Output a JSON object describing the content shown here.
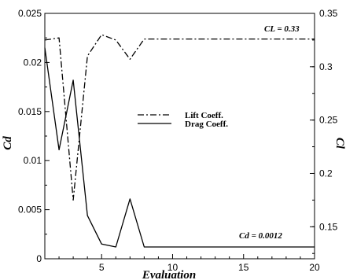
{
  "chart_data": {
    "type": "line",
    "xlabel": "Evaluation",
    "ylabel_left": "Cd",
    "ylabel_right": "Cl",
    "xlim": [
      1,
      20
    ],
    "ylim_left": [
      0,
      0.025
    ],
    "ylim_right": [
      0.12,
      0.35
    ],
    "xticks": [
      "5",
      "10",
      "15",
      "20"
    ],
    "yticks_left": [
      "0",
      "0.005",
      "0.01",
      "0.015",
      "0.02",
      "0.025"
    ],
    "yticks_right": [
      "0.15",
      "0.2",
      "0.25",
      "0.3",
      "0.35"
    ],
    "legend_position": "center",
    "grid": false,
    "series": [
      {
        "name": "Lift Coeff.",
        "axis": "right",
        "style": "dash-dot",
        "x": [
          1,
          2,
          3,
          4,
          5,
          6,
          7,
          8,
          9,
          10,
          11,
          12,
          13,
          14,
          15,
          16,
          17,
          18,
          19,
          20
        ],
        "y": [
          0.325,
          0.327,
          0.175,
          0.31,
          0.33,
          0.325,
          0.307,
          0.326,
          0.326,
          0.326,
          0.326,
          0.326,
          0.326,
          0.326,
          0.326,
          0.326,
          0.326,
          0.326,
          0.326,
          0.326
        ]
      },
      {
        "name": "Drag Coeff.",
        "axis": "left",
        "style": "solid",
        "x": [
          1,
          2,
          3,
          4,
          5,
          6,
          7,
          8,
          9,
          10,
          11,
          12,
          13,
          14,
          15,
          16,
          17,
          18,
          19,
          20
        ],
        "y": [
          0.0215,
          0.0111,
          0.0182,
          0.0044,
          0.0015,
          0.0012,
          0.0061,
          0.0012,
          0.0012,
          0.0012,
          0.0012,
          0.0012,
          0.0012,
          0.0012,
          0.0012,
          0.0012,
          0.0012,
          0.0012,
          0.0012,
          0.0012
        ]
      }
    ],
    "annotations": [
      {
        "text": "CL = 0.33"
      },
      {
        "text": "Cd = 0.0012"
      }
    ]
  }
}
